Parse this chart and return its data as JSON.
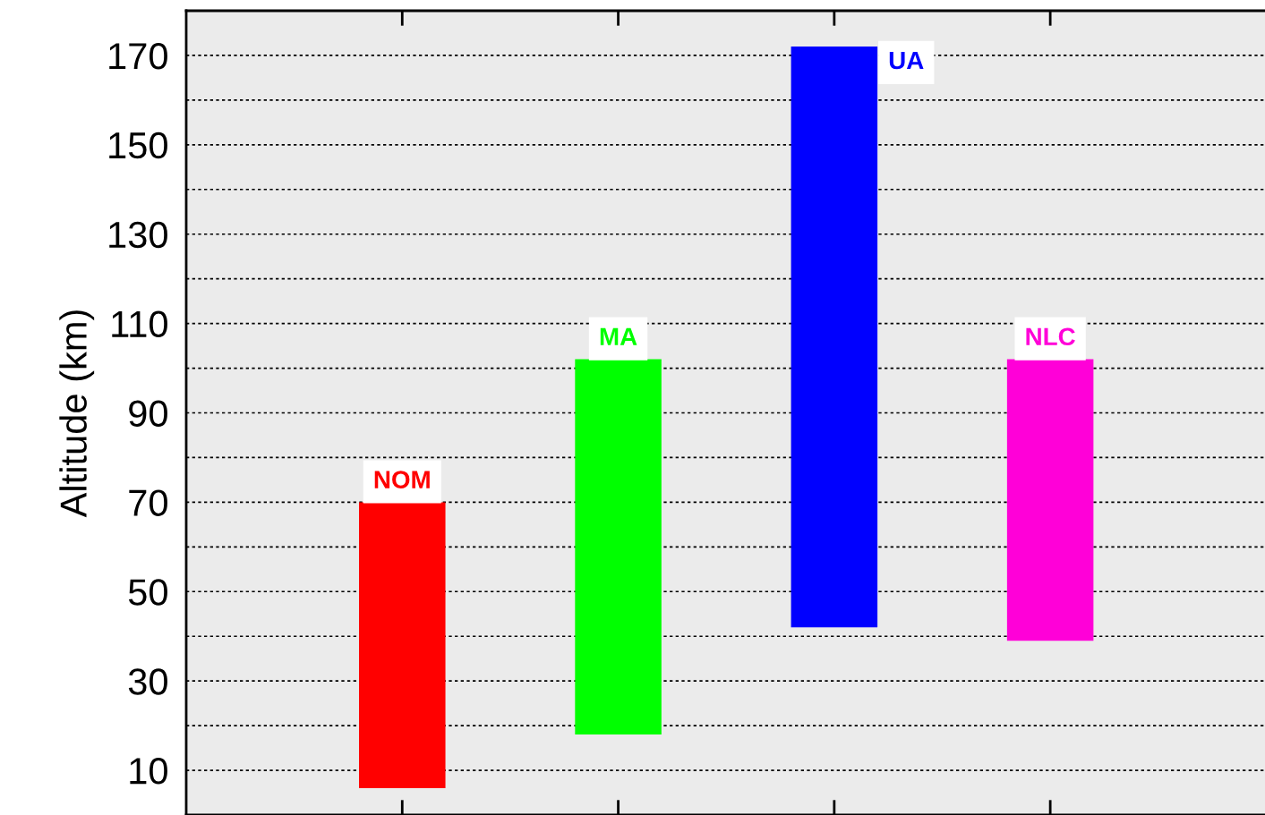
{
  "chart_data": {
    "type": "bar",
    "ylabel": "Altitude (km)",
    "categories": [
      "NOM",
      "MA",
      "UA",
      "NLC"
    ],
    "base": [
      6,
      18,
      42,
      39
    ],
    "values": [
      64,
      84,
      130,
      63
    ],
    "colors": [
      "#ff0000",
      "#00ff00",
      "#0000ff",
      "#ff00d8"
    ],
    "ylim": [
      0,
      180
    ],
    "yticks": [
      10,
      {
        "value": 20,
        "label": null
      },
      30,
      {
        "value": 40,
        "label": null
      },
      50,
      {
        "value": 60,
        "label": null
      },
      70,
      {
        "value": 80,
        "label": null
      },
      90,
      {
        "value": 100,
        "label": null
      },
      110,
      {
        "value": 120,
        "label": null
      },
      130,
      {
        "value": 140,
        "label": null
      },
      150,
      {
        "value": 160,
        "label": null
      },
      170
    ],
    "grid": "y",
    "tick_labels": "y"
  }
}
